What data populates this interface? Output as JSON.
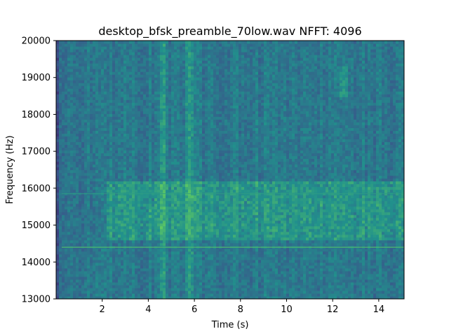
{
  "chart_data": {
    "type": "heatmap",
    "subtype": "spectrogram",
    "title": "desktop_bfsk_preamble_70low.wav  NFFT: 4096",
    "xlabel": "Time (s)",
    "ylabel": "Frequency (Hz)",
    "xlim": [
      0,
      15.1
    ],
    "ylim": [
      13000,
      20000
    ],
    "xticks": [
      2,
      4,
      6,
      8,
      10,
      12,
      14
    ],
    "yticks": [
      13000,
      14000,
      15000,
      16000,
      17000,
      18000,
      19000,
      20000
    ],
    "colormap": "viridis",
    "grid": false,
    "features": [
      {
        "kind": "tone_line",
        "frequency": 14400
      },
      {
        "kind": "tone_line",
        "frequency": 15850,
        "faint": true
      },
      {
        "kind": "energy_band",
        "t_start": 2.2,
        "t_end": 15.1,
        "f_low": 14600,
        "f_high": 16200
      },
      {
        "kind": "broadband_burst",
        "t": 4.6
      },
      {
        "kind": "broadband_burst",
        "t": 5.8
      },
      {
        "kind": "burst",
        "t": 12.5,
        "f_low": 18500,
        "f_high": 19300
      }
    ]
  }
}
